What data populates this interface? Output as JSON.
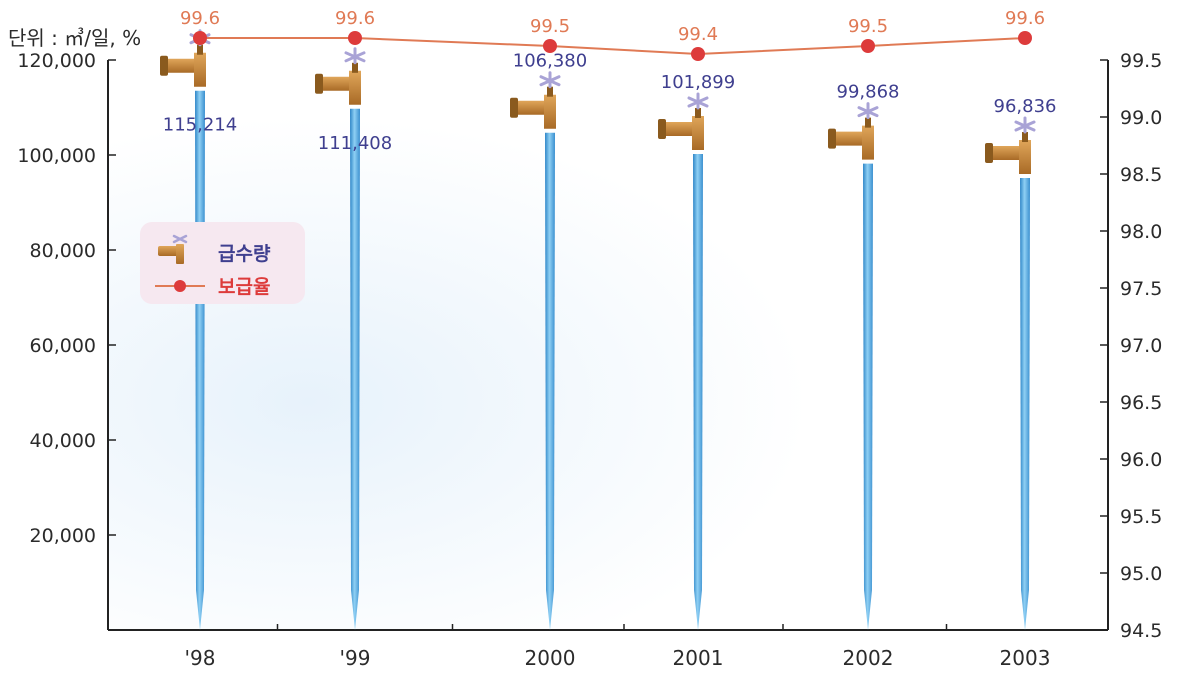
{
  "unit_label": "단위 : ㎥/일, %",
  "colors": {
    "faucet": "#c98a3a",
    "faucet_dark": "#8a5a1e",
    "water": "#56a6dc",
    "rate_line": "#e07a55",
    "rate_marker": "#dd3b3b",
    "rate_label": "#e07a55",
    "supply_label": "#3f3f8f",
    "handle": "#a9a3d6",
    "legend_bg": "#f6e8f0"
  },
  "chart_data": {
    "type": "bar",
    "title": "",
    "categories": [
      "'98",
      "'99",
      "2000",
      "2001",
      "2002",
      "2003"
    ],
    "left_axis": {
      "label": "",
      "ylim": [
        0,
        120000
      ],
      "ticks": [
        20000,
        40000,
        60000,
        80000,
        100000,
        120000
      ],
      "tick_labels": [
        "20,000",
        "40,000",
        "60,000",
        "80,000",
        "100,000",
        "120,000"
      ]
    },
    "right_axis": {
      "label": "",
      "ylim": [
        94.5,
        99.5
      ],
      "ticks": [
        94.5,
        95.0,
        95.5,
        96.0,
        96.5,
        97.0,
        97.5,
        98.0,
        98.5,
        99.0,
        99.5
      ],
      "tick_labels": [
        "94.5",
        "95.0",
        "95.5",
        "96.0",
        "96.5",
        "97.0",
        "97.5",
        "98.0",
        "98.5",
        "99.0",
        "99.5"
      ]
    },
    "series": [
      {
        "name": "급수량",
        "type": "bar",
        "axis": "left",
        "values": [
          115214,
          111408,
          106380,
          101899,
          99868,
          96836
        ],
        "labels": [
          "115,214",
          "111,408",
          "106,380",
          "101,899",
          "99,868",
          "96,836"
        ]
      },
      {
        "name": "보급율",
        "type": "line",
        "axis": "top",
        "values": [
          99.6,
          99.6,
          99.5,
          99.4,
          99.5,
          99.6
        ],
        "labels": [
          "99.6",
          "99.6",
          "99.5",
          "99.4",
          "99.5",
          "99.6"
        ]
      }
    ],
    "legend": {
      "placement": "left",
      "entries": [
        {
          "name": "급수량",
          "icon": "faucet-icon"
        },
        {
          "name": "보급율",
          "icon": "line-dot-marker"
        }
      ]
    },
    "grid": false
  }
}
